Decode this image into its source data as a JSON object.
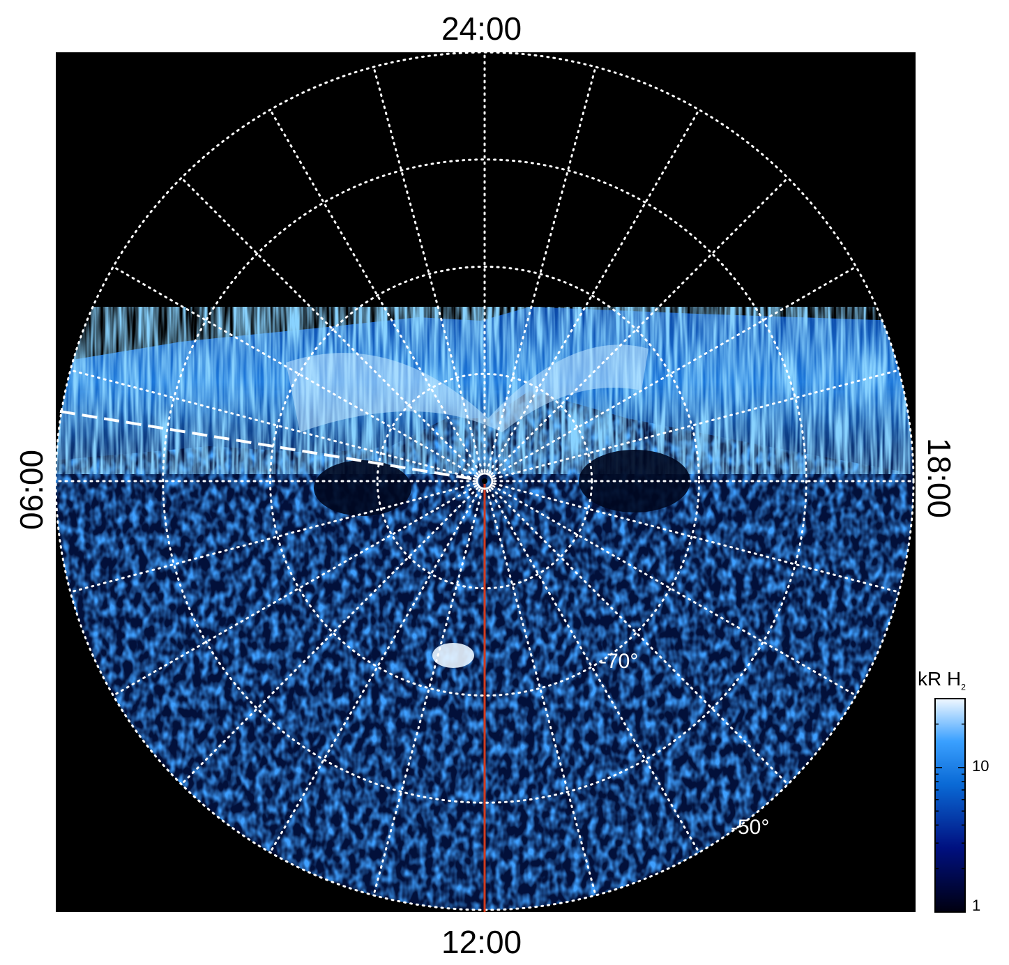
{
  "chart_data": {
    "type": "heatmap",
    "projection": "polar",
    "local_time_labels": {
      "top": "24:00",
      "bottom": "12:00",
      "left": "06:00",
      "right": "18:00"
    },
    "latitude_labels": [
      "-70°",
      "-50°"
    ],
    "latitude_rings_deg": [
      -80,
      -70,
      -60,
      -50
    ],
    "colorbar": {
      "title": "kR H",
      "title_sub": "2",
      "scale": "log",
      "range": [
        1,
        30
      ],
      "tick_labels": [
        "10",
        "1"
      ]
    },
    "colors": {
      "background": "#000000",
      "low": "#00002a",
      "mid": "#0a6ad6",
      "high": "#e8f4ff",
      "grid": "#ffffff",
      "meridian": "#d23c1e"
    }
  }
}
